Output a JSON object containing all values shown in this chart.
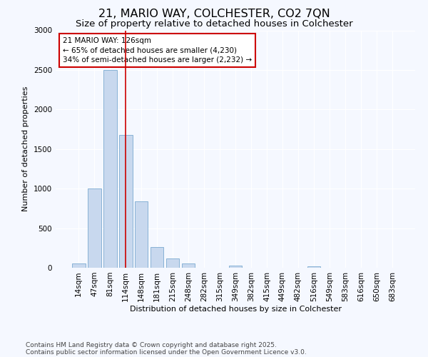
{
  "title1": "21, MARIO WAY, COLCHESTER, CO2 7QN",
  "title2": "Size of property relative to detached houses in Colchester",
  "xlabel": "Distribution of detached houses by size in Colchester",
  "ylabel": "Number of detached properties",
  "categories": [
    "14sqm",
    "47sqm",
    "81sqm",
    "114sqm",
    "148sqm",
    "181sqm",
    "215sqm",
    "248sqm",
    "282sqm",
    "315sqm",
    "349sqm",
    "382sqm",
    "415sqm",
    "449sqm",
    "482sqm",
    "516sqm",
    "549sqm",
    "583sqm",
    "616sqm",
    "650sqm",
    "683sqm"
  ],
  "values": [
    50,
    1000,
    2500,
    1680,
    840,
    260,
    120,
    50,
    0,
    0,
    30,
    0,
    0,
    0,
    0,
    20,
    0,
    0,
    0,
    0,
    0
  ],
  "bar_color": "#c8d8ee",
  "bar_edge_color": "#7aaad0",
  "vline_x_index": 3,
  "vline_color": "#cc0000",
  "annotation_text": "21 MARIO WAY: 126sqm\n← 65% of detached houses are smaller (4,230)\n34% of semi-detached houses are larger (2,232) →",
  "annotation_box_edgecolor": "#cc0000",
  "annotation_box_facecolor": "#ffffff",
  "footer1": "Contains HM Land Registry data © Crown copyright and database right 2025.",
  "footer2": "Contains public sector information licensed under the Open Government Licence v3.0.",
  "background_color": "#f5f8ff",
  "ylim": [
    0,
    3000
  ],
  "yticks": [
    0,
    500,
    1000,
    1500,
    2000,
    2500,
    3000
  ],
  "grid_color": "#dde8f5",
  "title1_fontsize": 11.5,
  "title2_fontsize": 9.5,
  "axis_fontsize": 8,
  "tick_fontsize": 7.5,
  "footer_fontsize": 6.5
}
